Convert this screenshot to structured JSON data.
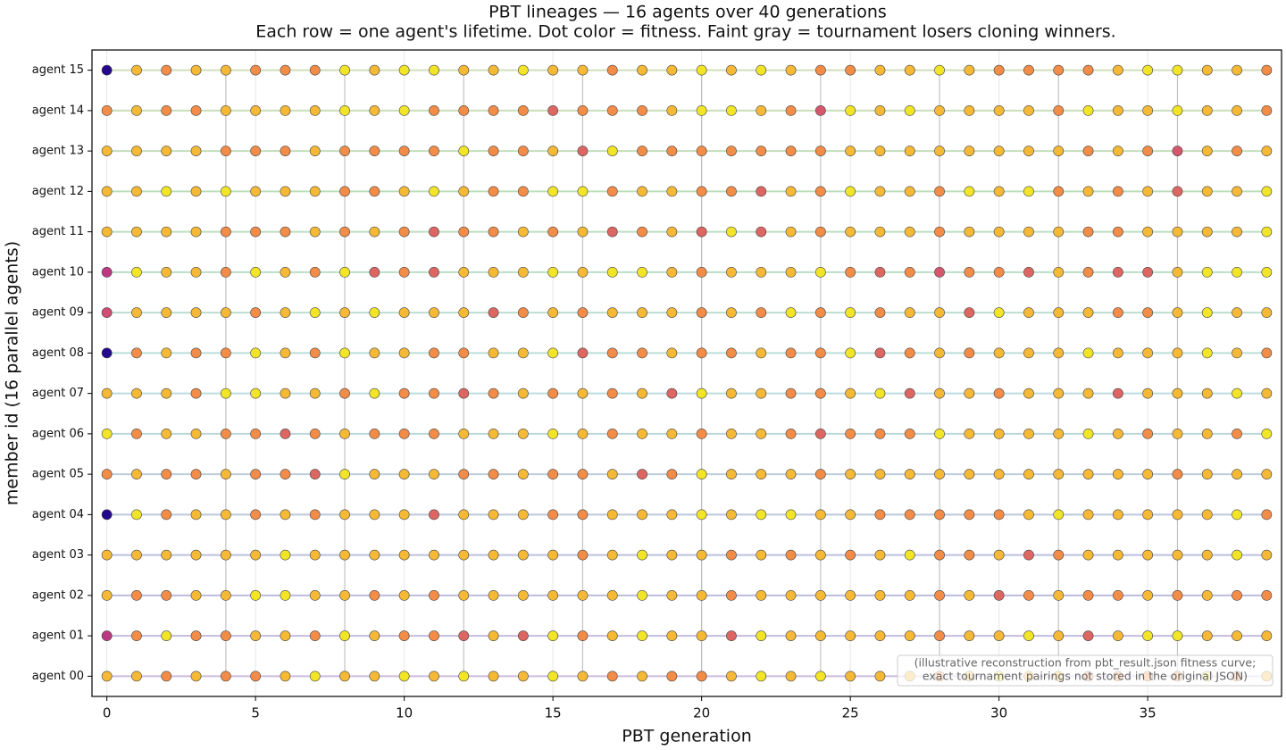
{
  "chart_data": {
    "type": "dotgrid",
    "title": "PBT lineages — 16 agents over 40 generations",
    "subtitle": "Each row = one agent's lifetime. Dot color = fitness. Faint gray = tournament losers cloning winners.",
    "x_label": "PBT generation",
    "y_label": "member id (16 parallel agents)",
    "x": [
      0,
      1,
      2,
      3,
      4,
      5,
      6,
      7,
      8,
      9,
      10,
      11,
      12,
      13,
      14,
      15,
      16,
      17,
      18,
      19,
      20,
      21,
      22,
      23,
      24,
      25,
      26,
      27,
      28,
      29,
      30,
      31,
      32,
      33,
      34,
      35,
      36,
      37,
      38,
      39
    ],
    "xlim": [
      -0.5,
      39.5
    ],
    "xticks": [
      0,
      5,
      10,
      15,
      20,
      25,
      30,
      35
    ],
    "categories": [
      "agent 00",
      "agent 01",
      "agent 02",
      "agent 03",
      "agent 04",
      "agent 05",
      "agent 06",
      "agent 07",
      "agent 08",
      "agent 09",
      "agent 10",
      "agent 11",
      "agent 12",
      "agent 13",
      "agent 14",
      "agent 15"
    ],
    "colormap": [
      "#0d0887",
      "#7e03a8",
      "#cc4778",
      "#f89540",
      "#f0f921"
    ],
    "clim": [
      0,
      1
    ],
    "grid": true,
    "legend_position": "lower right",
    "note": [
      "(illustrative reconstruction from pbt_result.json fitness curve;",
      "exact tournament pairings not stored in the original JSON)"
    ],
    "values": [
      [
        0.84,
        0.84,
        0.72,
        0.84,
        0.72,
        0.72,
        0.84,
        0.95,
        0.84,
        0.84,
        0.95,
        0.84,
        0.95,
        0.84,
        0.84,
        0.95,
        0.84,
        0.72,
        0.84,
        0.72,
        0.72,
        0.84,
        0.95,
        0.84,
        0.95,
        0.84,
        0.84,
        0.84,
        0.72,
        0.84,
        0.95,
        0.84,
        0.84,
        0.72,
        0.72,
        0.72,
        0.72,
        0.95,
        0.72,
        0.84
      ],
      [
        0.45,
        0.72,
        0.95,
        0.72,
        0.72,
        0.84,
        0.84,
        0.72,
        0.95,
        0.84,
        0.72,
        0.72,
        0.6,
        0.84,
        0.6,
        0.95,
        0.72,
        0.84,
        0.95,
        0.84,
        0.84,
        0.6,
        0.95,
        0.84,
        0.84,
        0.84,
        0.84,
        0.84,
        0.72,
        0.84,
        0.84,
        0.95,
        0.84,
        0.6,
        0.84,
        0.95,
        0.95,
        0.84,
        0.84,
        0.84
      ],
      [
        0.84,
        0.72,
        0.72,
        0.84,
        0.84,
        0.95,
        0.95,
        0.84,
        0.84,
        0.72,
        0.84,
        0.72,
        0.84,
        0.84,
        0.84,
        0.84,
        0.84,
        0.84,
        0.95,
        0.84,
        0.84,
        0.72,
        0.84,
        0.84,
        0.84,
        0.84,
        0.84,
        0.84,
        0.72,
        0.84,
        0.6,
        0.72,
        0.84,
        0.72,
        0.72,
        0.84,
        0.72,
        0.84,
        0.72,
        0.72
      ],
      [
        0.84,
        0.84,
        0.84,
        0.84,
        0.84,
        0.84,
        0.95,
        0.84,
        0.84,
        0.84,
        0.84,
        0.84,
        0.84,
        0.84,
        0.84,
        0.84,
        0.72,
        0.84,
        0.95,
        0.84,
        0.84,
        0.72,
        0.84,
        0.72,
        0.84,
        0.72,
        0.84,
        0.95,
        0.72,
        0.72,
        0.84,
        0.6,
        0.72,
        0.84,
        0.84,
        0.84,
        0.84,
        0.84,
        0.95,
        0.84
      ],
      [
        0.05,
        0.95,
        0.72,
        0.84,
        0.84,
        0.72,
        0.84,
        0.72,
        0.84,
        0.84,
        0.84,
        0.6,
        0.84,
        0.84,
        0.84,
        0.72,
        0.72,
        0.84,
        0.84,
        0.84,
        0.95,
        0.84,
        0.95,
        0.95,
        0.84,
        0.84,
        0.72,
        0.72,
        0.72,
        0.72,
        0.72,
        0.84,
        0.95,
        0.84,
        0.84,
        0.84,
        0.84,
        0.84,
        0.95,
        0.72
      ],
      [
        0.72,
        0.84,
        0.72,
        0.72,
        0.84,
        0.72,
        0.72,
        0.6,
        0.95,
        0.84,
        0.84,
        0.84,
        0.72,
        0.72,
        0.84,
        0.72,
        0.72,
        0.84,
        0.6,
        0.72,
        0.95,
        0.84,
        0.84,
        0.84,
        0.72,
        0.84,
        0.84,
        0.84,
        0.84,
        0.84,
        0.84,
        0.84,
        0.84,
        0.84,
        0.84,
        0.84,
        0.72,
        0.84,
        0.84,
        0.84
      ],
      [
        0.95,
        0.72,
        0.84,
        0.84,
        0.72,
        0.72,
        0.6,
        0.72,
        0.84,
        0.72,
        0.72,
        0.72,
        0.84,
        0.84,
        0.84,
        0.95,
        0.84,
        0.72,
        0.84,
        0.84,
        0.72,
        0.84,
        0.84,
        0.72,
        0.6,
        0.72,
        0.72,
        0.72,
        0.95,
        0.84,
        0.84,
        0.84,
        0.84,
        0.95,
        0.84,
        0.72,
        0.84,
        0.84,
        0.72,
        0.95
      ],
      [
        0.84,
        0.84,
        0.84,
        0.72,
        0.95,
        0.95,
        0.84,
        0.84,
        0.72,
        0.95,
        0.72,
        0.72,
        0.6,
        0.72,
        0.84,
        0.72,
        0.84,
        0.72,
        0.84,
        0.6,
        0.95,
        0.84,
        0.84,
        0.72,
        0.72,
        0.84,
        0.95,
        0.6,
        0.84,
        0.84,
        0.72,
        0.84,
        0.84,
        0.84,
        0.6,
        0.84,
        0.84,
        0.84,
        0.95,
        0.84
      ],
      [
        0.05,
        0.72,
        0.84,
        0.72,
        0.72,
        0.95,
        0.84,
        0.72,
        0.95,
        0.84,
        0.84,
        0.72,
        0.72,
        0.84,
        0.84,
        0.95,
        0.6,
        0.72,
        0.72,
        0.84,
        0.72,
        0.72,
        0.84,
        0.72,
        0.72,
        0.95,
        0.6,
        0.72,
        0.84,
        0.72,
        0.84,
        0.84,
        0.84,
        0.95,
        0.84,
        0.84,
        0.84,
        0.95,
        0.84,
        0.72
      ],
      [
        0.52,
        0.84,
        0.84,
        0.84,
        0.84,
        0.72,
        0.84,
        0.95,
        0.84,
        0.95,
        0.84,
        0.84,
        0.84,
        0.6,
        0.72,
        0.84,
        0.72,
        0.84,
        0.84,
        0.84,
        0.72,
        0.84,
        0.72,
        0.95,
        0.72,
        0.95,
        0.72,
        0.84,
        0.84,
        0.6,
        0.95,
        0.84,
        0.84,
        0.84,
        0.72,
        0.72,
        0.84,
        0.95,
        0.84,
        0.84
      ],
      [
        0.45,
        0.95,
        0.84,
        0.84,
        0.72,
        0.95,
        0.84,
        0.72,
        0.95,
        0.6,
        0.72,
        0.6,
        0.84,
        0.84,
        0.84,
        0.95,
        0.84,
        0.95,
        0.95,
        0.84,
        0.72,
        0.84,
        0.84,
        0.84,
        0.95,
        0.72,
        0.6,
        0.72,
        0.55,
        0.72,
        0.72,
        0.6,
        0.84,
        0.72,
        0.6,
        0.6,
        0.84,
        0.95,
        0.95,
        0.95
      ],
      [
        0.84,
        0.84,
        0.84,
        0.84,
        0.72,
        0.72,
        0.72,
        0.84,
        0.72,
        0.84,
        0.72,
        0.6,
        0.72,
        0.72,
        0.84,
        0.72,
        0.84,
        0.6,
        0.72,
        0.84,
        0.6,
        0.95,
        0.6,
        0.84,
        0.72,
        0.84,
        0.84,
        0.84,
        0.72,
        0.84,
        0.84,
        0.84,
        0.84,
        0.72,
        0.72,
        0.84,
        0.84,
        0.84,
        0.84,
        0.95
      ],
      [
        0.84,
        0.84,
        0.95,
        0.84,
        0.95,
        0.84,
        0.84,
        0.84,
        0.72,
        0.72,
        0.84,
        0.95,
        0.84,
        0.72,
        0.72,
        0.95,
        0.95,
        0.72,
        0.84,
        0.84,
        0.72,
        0.72,
        0.6,
        0.84,
        0.72,
        0.95,
        0.84,
        0.84,
        0.72,
        0.95,
        0.84,
        0.95,
        0.72,
        0.84,
        0.72,
        0.84,
        0.6,
        0.84,
        0.84,
        0.95
      ],
      [
        0.84,
        0.84,
        0.84,
        0.84,
        0.72,
        0.72,
        0.72,
        0.84,
        0.72,
        0.72,
        0.72,
        0.72,
        0.95,
        0.72,
        0.72,
        0.84,
        0.6,
        0.95,
        0.72,
        0.72,
        0.72,
        0.72,
        0.72,
        0.72,
        0.72,
        0.84,
        0.84,
        0.84,
        0.84,
        0.84,
        0.84,
        0.84,
        0.84,
        0.72,
        0.84,
        0.72,
        0.55,
        0.84,
        0.72,
        0.84
      ],
      [
        0.72,
        0.84,
        0.72,
        0.72,
        0.84,
        0.84,
        0.84,
        0.84,
        0.95,
        0.84,
        0.95,
        0.72,
        0.72,
        0.72,
        0.72,
        0.6,
        0.72,
        0.72,
        0.72,
        0.84,
        0.95,
        0.95,
        0.84,
        0.72,
        0.55,
        0.95,
        0.84,
        0.95,
        0.84,
        0.84,
        0.84,
        0.84,
        0.72,
        0.95,
        0.84,
        0.84,
        0.95,
        0.84,
        0.84,
        0.72
      ],
      [
        0.05,
        0.84,
        0.72,
        0.84,
        0.84,
        0.72,
        0.72,
        0.72,
        0.95,
        0.84,
        0.95,
        0.95,
        0.84,
        0.84,
        0.95,
        0.84,
        0.84,
        0.72,
        0.84,
        0.84,
        0.95,
        0.84,
        0.95,
        0.84,
        0.72,
        0.72,
        0.84,
        0.84,
        0.95,
        0.84,
        0.72,
        0.72,
        0.72,
        0.72,
        0.84,
        0.95,
        0.95,
        0.84,
        0.84,
        0.72
      ]
    ]
  }
}
